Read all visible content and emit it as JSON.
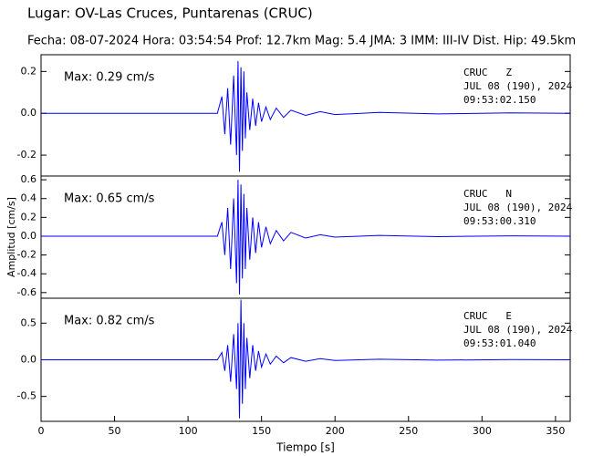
{
  "header": {
    "title": "Lugar: OV-Las Cruces, Puntarenas (CRUC)",
    "subtitle": "Fecha: 08-07-2024 Hora: 03:54:54 Prof: 12.7km Mag: 5.4    JMA:  3 IMM: III-IV Dist. Hip: 49.5km"
  },
  "chart_data": [
    {
      "type": "line",
      "color": "#0000ff",
      "x": [
        0,
        60,
        120,
        123,
        125,
        127,
        129,
        131,
        133,
        134,
        135,
        136,
        137,
        138,
        139,
        140,
        142,
        144,
        146,
        148,
        150,
        153,
        156,
        160,
        165,
        170,
        180,
        190,
        200,
        230,
        270,
        320,
        360
      ],
      "values": [
        0,
        0,
        0,
        0.08,
        -0.1,
        0.12,
        -0.15,
        0.18,
        -0.2,
        0.25,
        -0.28,
        0.22,
        -0.18,
        0.2,
        -0.12,
        0.1,
        -0.08,
        0.07,
        -0.06,
        0.05,
        -0.04,
        0.03,
        -0.03,
        0.025,
        -0.02,
        0.015,
        -0.01,
        0.008,
        -0.006,
        0.004,
        -0.003,
        0.002,
        0
      ],
      "xlim": [
        0,
        360
      ],
      "ylim": [
        -0.3,
        0.28
      ],
      "yticks": [
        {
          "value": 0.2,
          "label": "0.2"
        },
        {
          "value": 0,
          "label": "0.0"
        },
        {
          "value": -0.2,
          "label": "-0.2"
        }
      ],
      "max_label": "Max: 0.29 cm/s",
      "station": "CRUC   Z",
      "date": "JUL 08 (190), 2024",
      "time": "09:53:02.150"
    },
    {
      "type": "line",
      "color": "#0000ff",
      "ylabel": "Amplitud [cm/s]",
      "x": [
        0,
        60,
        120,
        123,
        125,
        127,
        129,
        131,
        133,
        134,
        135,
        136,
        137,
        138,
        139,
        140,
        142,
        144,
        146,
        148,
        150,
        153,
        156,
        160,
        165,
        170,
        180,
        190,
        200,
        230,
        270,
        320,
        360
      ],
      "values": [
        0,
        0,
        0,
        0.15,
        -0.2,
        0.3,
        -0.35,
        0.4,
        -0.5,
        0.6,
        -0.62,
        0.55,
        -0.45,
        0.45,
        -0.35,
        0.3,
        -0.25,
        0.2,
        -0.18,
        0.15,
        -0.12,
        0.1,
        -0.08,
        0.06,
        -0.05,
        0.04,
        -0.02,
        0.015,
        -0.01,
        0.008,
        -0.005,
        0.004,
        0
      ],
      "xlim": [
        0,
        360
      ],
      "ylim": [
        -0.66,
        0.64
      ],
      "yticks": [
        {
          "value": 0.6,
          "label": "0.6"
        },
        {
          "value": 0.4,
          "label": "0.4"
        },
        {
          "value": 0.2,
          "label": "0.2"
        },
        {
          "value": 0,
          "label": "0.0"
        },
        {
          "value": -0.2,
          "label": "-0.2"
        },
        {
          "value": -0.4,
          "label": "-0.4"
        },
        {
          "value": -0.6,
          "label": "-0.6"
        }
      ],
      "max_label": "Max: 0.65 cm/s",
      "station": "CRUC   N",
      "date": "JUL 08 (190), 2024",
      "time": "09:53:00.310"
    },
    {
      "type": "line",
      "color": "#0000ff",
      "xlabel": "Tiempo [s]",
      "x": [
        0,
        60,
        120,
        123,
        125,
        127,
        129,
        131,
        133,
        134,
        135,
        136,
        137,
        138,
        139,
        140,
        142,
        144,
        146,
        148,
        150,
        153,
        156,
        160,
        165,
        170,
        180,
        190,
        200,
        230,
        270,
        320,
        360
      ],
      "values": [
        0,
        0,
        0,
        0.1,
        -0.15,
        0.2,
        -0.3,
        0.35,
        -0.4,
        0.5,
        -0.8,
        0.82,
        -0.6,
        0.5,
        -0.4,
        0.3,
        -0.25,
        0.2,
        -0.15,
        0.12,
        -0.1,
        0.08,
        -0.06,
        0.05,
        -0.04,
        0.03,
        -0.02,
        0.015,
        -0.01,
        0.008,
        -0.005,
        0.003,
        0
      ],
      "xlim": [
        0,
        360
      ],
      "xticks": [
        0,
        50,
        100,
        150,
        200,
        250,
        300,
        350
      ],
      "ylim": [
        -0.84,
        0.84
      ],
      "yticks": [
        {
          "value": 0.5,
          "label": "0.5"
        },
        {
          "value": 0,
          "label": "0.0"
        },
        {
          "value": -0.5,
          "label": "-0.5"
        }
      ],
      "max_label": "Max: 0.82 cm/s",
      "station": "CRUC   E",
      "date": "JUL 08 (190), 2024",
      "time": "09:53:01.040"
    }
  ]
}
